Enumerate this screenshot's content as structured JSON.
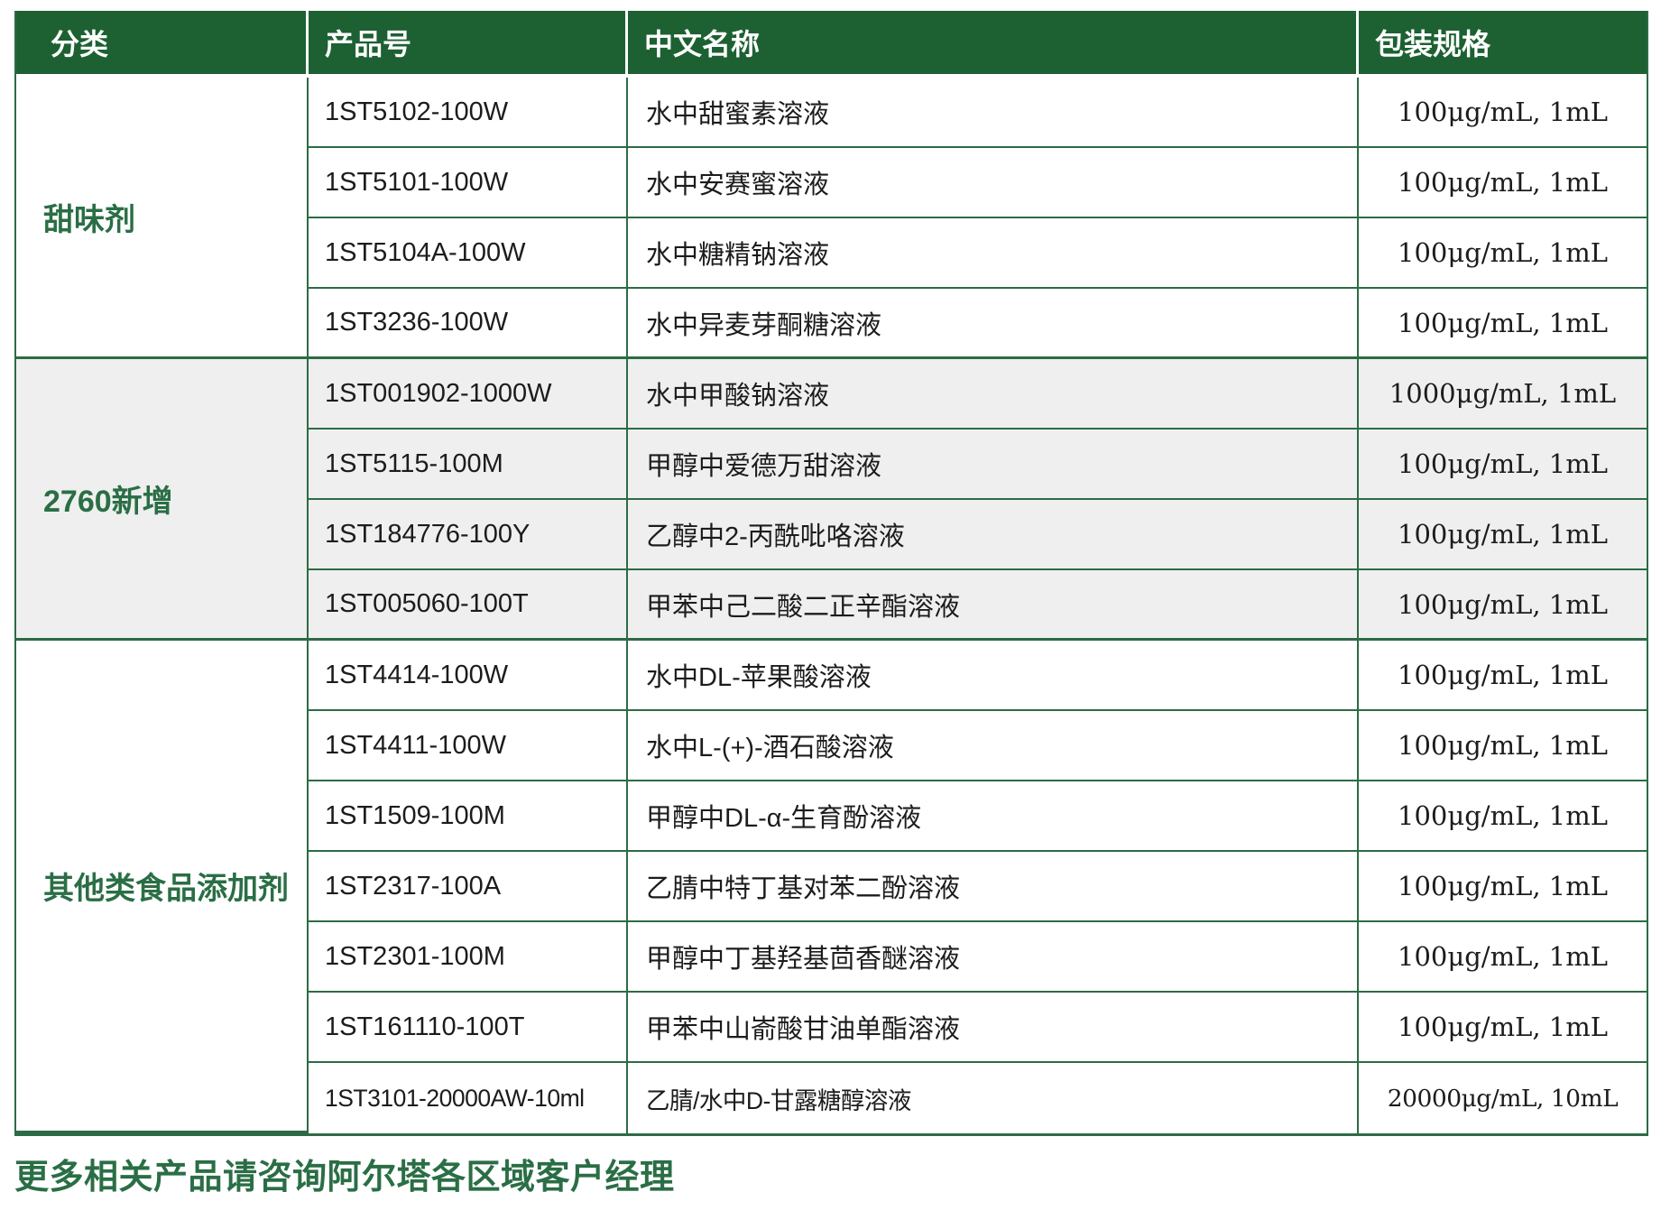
{
  "colors": {
    "header_bg": "#1d6133",
    "grid_line": "#2d6b45",
    "accent_green": "#2a6e45",
    "shaded_row_bg": "#efefef",
    "body_text": "#1c1c1c"
  },
  "table": {
    "columns": [
      {
        "key": "category",
        "label": "分类"
      },
      {
        "key": "product_no",
        "label": "产品号"
      },
      {
        "key": "name_cn",
        "label": "中文名称"
      },
      {
        "key": "spec",
        "label": "包装规格"
      }
    ],
    "sections": [
      {
        "category": "甜味剂",
        "shaded": false,
        "rows": [
          {
            "product_no": "1ST5102-100W",
            "name_cn": "水中甜蜜素溶液",
            "spec": "100μg/mL, 1mL"
          },
          {
            "product_no": "1ST5101-100W",
            "name_cn": "水中安赛蜜溶液",
            "spec": "100μg/mL, 1mL"
          },
          {
            "product_no": "1ST5104A-100W",
            "name_cn": "水中糖精钠溶液",
            "spec": "100μg/mL, 1mL"
          },
          {
            "product_no": "1ST3236-100W",
            "name_cn": "水中异麦芽酮糖溶液",
            "spec": "100μg/mL, 1mL"
          }
        ]
      },
      {
        "category": "2760新增",
        "shaded": true,
        "rows": [
          {
            "product_no": "1ST001902-1000W",
            "name_cn": "水中甲酸钠溶液",
            "spec": "1000μg/mL, 1mL"
          },
          {
            "product_no": "1ST5115-100M",
            "name_cn": "甲醇中爱德万甜溶液",
            "spec": "100μg/mL, 1mL"
          },
          {
            "product_no": "1ST184776-100Y",
            "name_cn": "乙醇中2-丙酰吡咯溶液",
            "spec": "100μg/mL, 1mL"
          },
          {
            "product_no": "1ST005060-100T",
            "name_cn": "甲苯中己二酸二正辛酯溶液",
            "spec": "100μg/mL, 1mL"
          }
        ]
      },
      {
        "category": "其他类食品添加剂",
        "shaded": false,
        "rows": [
          {
            "product_no": "1ST4414-100W",
            "name_cn": "水中DL-苹果酸溶液",
            "spec": "100μg/mL, 1mL"
          },
          {
            "product_no": "1ST4411-100W",
            "name_cn": "水中L-(+)-酒石酸溶液",
            "spec": "100μg/mL, 1mL"
          },
          {
            "product_no": "1ST1509-100M",
            "name_cn": "甲醇中DL-α-生育酚溶液",
            "spec": "100μg/mL, 1mL"
          },
          {
            "product_no": "1ST2317-100A",
            "name_cn": "乙腈中特丁基对苯二酚溶液",
            "spec": "100μg/mL, 1mL"
          },
          {
            "product_no": "1ST2301-100M",
            "name_cn": "甲醇中丁基羟基茴香醚溶液",
            "spec": "100μg/mL, 1mL"
          },
          {
            "product_no": "1ST161110-100T",
            "name_cn": "甲苯中山嵛酸甘油单酯溶液",
            "spec": "100μg/mL, 1mL"
          },
          {
            "product_no": "1ST3101-20000AW-10ml",
            "name_cn": "乙腈/水中D-甘露糖醇溶液",
            "spec": "20000μg/mL, 10mL"
          }
        ]
      }
    ]
  },
  "footer": {
    "note": "更多相关产品请咨询阿尔塔各区域客户经理"
  }
}
